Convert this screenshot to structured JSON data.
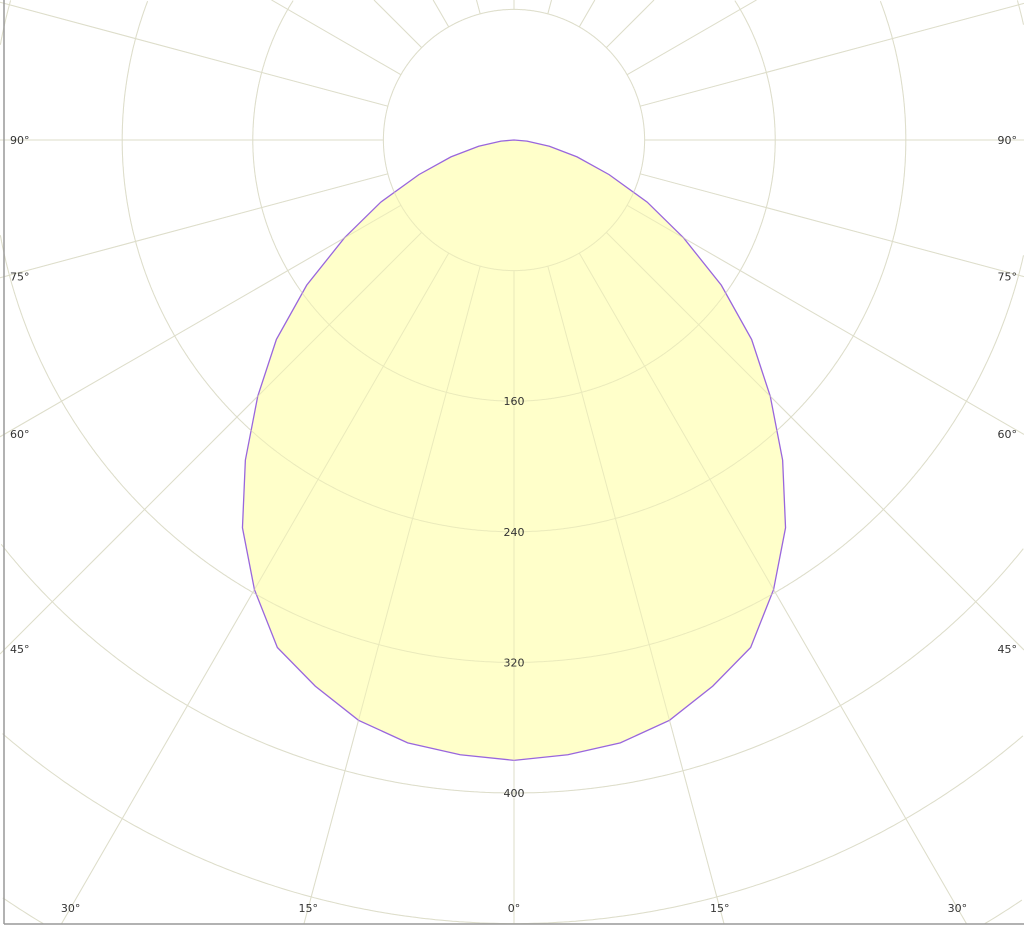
{
  "chart_data": {
    "type": "polar",
    "title": "",
    "angle_unit": "degrees",
    "radial_ticks": [
      160,
      240,
      320,
      400
    ],
    "radial_grid_step": 80,
    "radial_max_visible": 640,
    "angle_grid_step": 15,
    "angle_tick_labels": {
      "left": [
        "90°",
        "75°",
        "60°",
        "45°"
      ],
      "right": [
        "90°",
        "75°",
        "60°",
        "45°"
      ],
      "bottom": [
        "30°",
        "15°",
        "0°",
        "15°",
        "30°"
      ]
    },
    "grid": true,
    "symmetric": true,
    "series": [
      {
        "angles": [
          0,
          5,
          10,
          15,
          20,
          25,
          30,
          35,
          40,
          45,
          50,
          55,
          60,
          65,
          70,
          75,
          80,
          85,
          90
        ],
        "values": [
          380,
          378,
          375,
          368,
          356,
          343,
          318,
          290,
          256,
          222,
          190,
          155,
          120,
          90,
          62,
          40,
          22,
          8,
          0
        ]
      }
    ],
    "colors": {
      "fill": "#ffffc4",
      "line": "#9966dd",
      "grid": "#e4e4e4",
      "border": "#999999"
    }
  }
}
